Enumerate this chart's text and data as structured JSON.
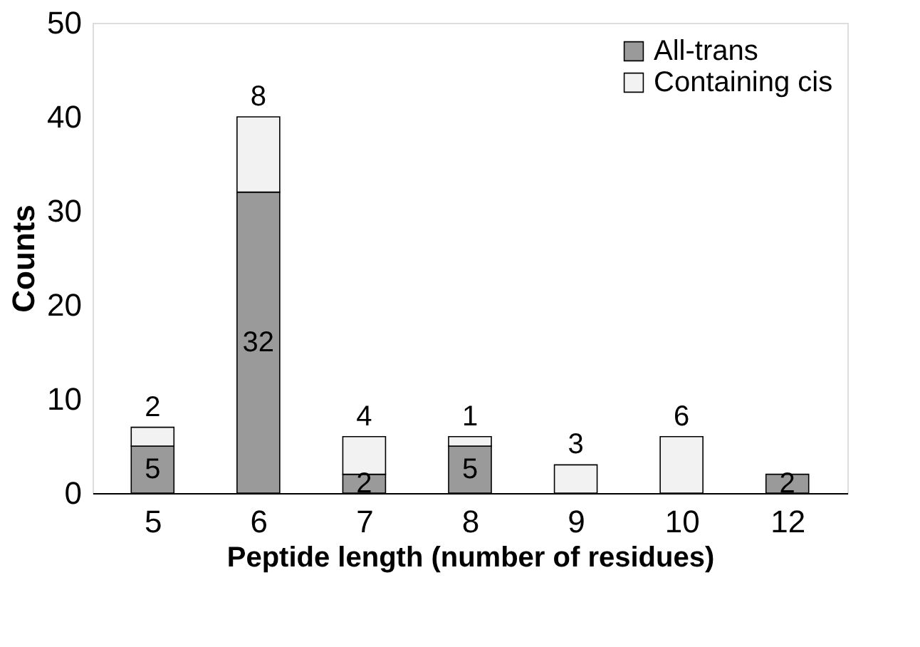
{
  "chart_data": {
    "type": "bar",
    "stacked": true,
    "xlabel": "Peptide length (number of residues)",
    "ylabel": "Counts",
    "categories": [
      "5",
      "6",
      "7",
      "8",
      "9",
      "10",
      "12"
    ],
    "series": [
      {
        "name": "All-trans",
        "color": "#9a9a9a",
        "values": [
          5,
          32,
          2,
          5,
          0,
          0,
          2
        ],
        "value_labels": [
          "5",
          "32",
          "2",
          "5",
          null,
          null,
          "2"
        ]
      },
      {
        "name": "Containing cis",
        "color": "#f2f2f2",
        "values": [
          2,
          8,
          4,
          1,
          3,
          6,
          0
        ],
        "value_labels": [
          "2",
          "8",
          "4",
          "1",
          "3",
          "6",
          null
        ]
      }
    ],
    "ylim": [
      0,
      50
    ],
    "yticks": [
      0,
      10,
      20,
      30,
      40,
      50
    ],
    "grid": false,
    "legend": "top right"
  }
}
